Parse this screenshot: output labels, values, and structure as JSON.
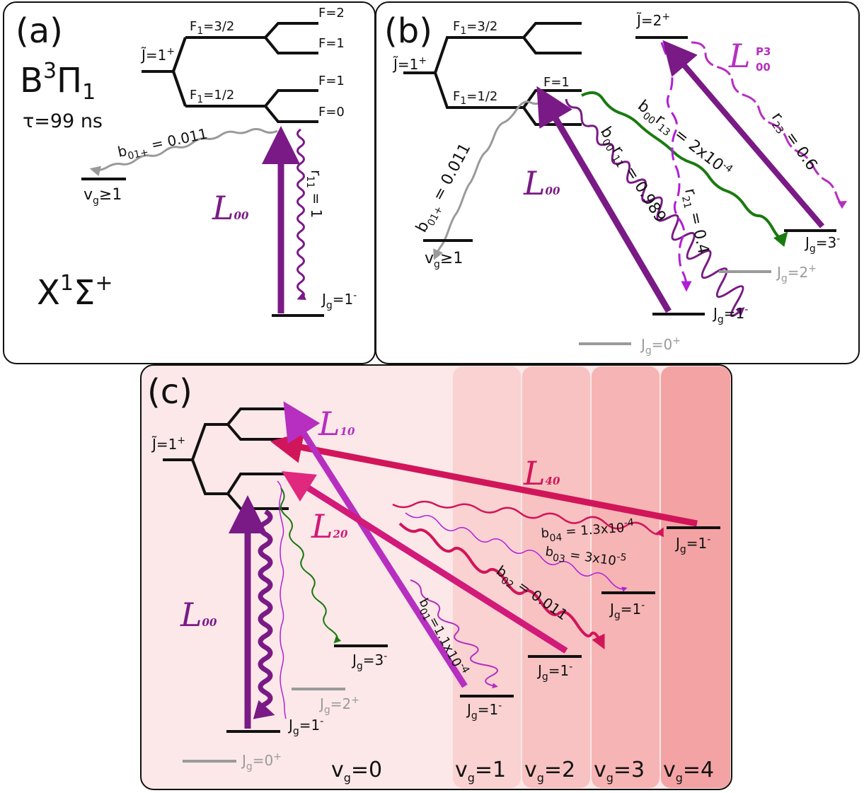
{
  "panel_a": {
    "label": "(a)",
    "state_B": "B",
    "state_B_sup": "3",
    "state_B_pi": "Π",
    "state_B_sub": "1",
    "lifetime": "τ=99 ns",
    "J_label": "J̃=1",
    "J_sup": "+",
    "F1_upper": "F",
    "F1_upper_sub": "1",
    "F1_upper_val": "=3/2",
    "F1_lower": "F",
    "F1_lower_sub": "1",
    "F1_lower_val": "=1/2",
    "F_labels": [
      "F=2",
      "F=1",
      "F=1",
      "F=0"
    ],
    "state_X": "X",
    "state_X_sup": "1",
    "state_X_sigma": "Σ",
    "state_X_sup2": "+",
    "branch_b": "b",
    "branch_b_sub": "01+",
    "branch_b_val": " = 0.011",
    "vg_label": "v",
    "vg_sub": "g",
    "vg_val": "≥1",
    "L_label": "L",
    "L_sub": "00",
    "r_label": "r",
    "r_sub": "11",
    "r_val": " = 1",
    "Jg_label": "J",
    "Jg_sub": "g",
    "Jg_val": "=1",
    "Jg_sup": "-"
  },
  "panel_b": {
    "label": "(b)",
    "J_label": "J̃=1",
    "J_sup": "+",
    "J2_label": "J̃=2",
    "J2_sup": "+",
    "F1_upper": "F",
    "F1_upper_sub": "1",
    "F1_upper_val": "=3/2",
    "F1_lower": "F",
    "F1_lower_sub": "1",
    "F1_lower_val": "=1/2",
    "F_label": "F=1",
    "branch_b": "b",
    "branch_b_sub": "01+",
    "branch_b_val": " = 0.011",
    "vg_label": "v",
    "vg_sub": "g",
    "vg_val": "≥1",
    "L00_label": "L",
    "L00_sub": "00",
    "LP3_label": "L",
    "LP3_sub": "00",
    "LP3_sup": "P3",
    "r11_a": "b",
    "r11_a_sub": "00",
    "r11_b": "r",
    "r11_b_sub": "11",
    "r11_val": " = 0.989",
    "r13_a": "b",
    "r13_a_sub": "00",
    "r13_b": "r",
    "r13_b_sub": "13",
    "r13_val": " = 2x10",
    "r13_exp": "-4",
    "r21": "r",
    "r21_sub": "21",
    "r21_val": " = 0.4",
    "r23": "r",
    "r23_sub": "23",
    "r23_val": " = 0.6",
    "Jg3": "J",
    "Jg3_sub": "g",
    "Jg3_val": "=3",
    "Jg3_sup": "-",
    "Jg2": "J",
    "Jg2_sub": "g",
    "Jg2_val": "=2",
    "Jg2_sup": "+",
    "Jg1": "J",
    "Jg1_sub": "g",
    "Jg1_val": "=1",
    "Jg1_sup": "-",
    "Jg0": "J",
    "Jg0_sub": "g",
    "Jg0_val": "=0",
    "Jg0_sup": "+"
  },
  "panel_c": {
    "label": "(c)",
    "J_label": "J̃=1",
    "J_sup": "+",
    "L10": "L",
    "L10_sub": "10",
    "L40": "L",
    "L40_sub": "40",
    "L20": "L",
    "L20_sub": "20",
    "L00": "L",
    "L00_sub": "00",
    "b04": "b",
    "b04_sub": "04",
    "b04_val": " = 1.3x10",
    "b04_exp": "-4",
    "b03": "b",
    "b03_sub": "03",
    "b03_val": " = 3x10",
    "b03_exp": "-5",
    "b02": "b",
    "b02_sub": "02",
    "b02_val": " = 0.011",
    "b01": "b",
    "b01_sub": "01",
    "b01_val": "=1.1x10",
    "b01_exp": "-4",
    "Jg_levels": [
      {
        "main": "J",
        "sub": "g",
        "val": "=1",
        "sup": "-"
      },
      {
        "main": "J",
        "sub": "g",
        "val": "=1",
        "sup": "-"
      },
      {
        "main": "J",
        "sub": "g",
        "val": "=1",
        "sup": "-"
      },
      {
        "main": "J",
        "sub": "g",
        "val": "=1",
        "sup": "-"
      },
      {
        "main": "J",
        "sub": "g",
        "val": "=3",
        "sup": "-"
      },
      {
        "main": "J",
        "sub": "g",
        "val": "=2",
        "sup": "+"
      },
      {
        "main": "J",
        "sub": "g",
        "val": "=1",
        "sup": "-"
      },
      {
        "main": "J",
        "sub": "g",
        "val": "=0",
        "sup": "+"
      }
    ],
    "vg_labels": [
      {
        "main": "v",
        "sub": "g",
        "val": "=0"
      },
      {
        "main": "v",
        "sub": "g",
        "val": "=1"
      },
      {
        "main": "v",
        "sub": "g",
        "val": "=2"
      },
      {
        "main": "v",
        "sub": "g",
        "val": "=3"
      },
      {
        "main": "v",
        "sub": "g",
        "val": "=4"
      }
    ]
  },
  "colors": {
    "purple": "#7a1a86",
    "magenta": "#b62fc0",
    "violet": "#b11fd6",
    "green": "#1a7a10",
    "grey": "#9a9a9a",
    "crimson": "#d1155a",
    "pink": "#e0287e"
  }
}
